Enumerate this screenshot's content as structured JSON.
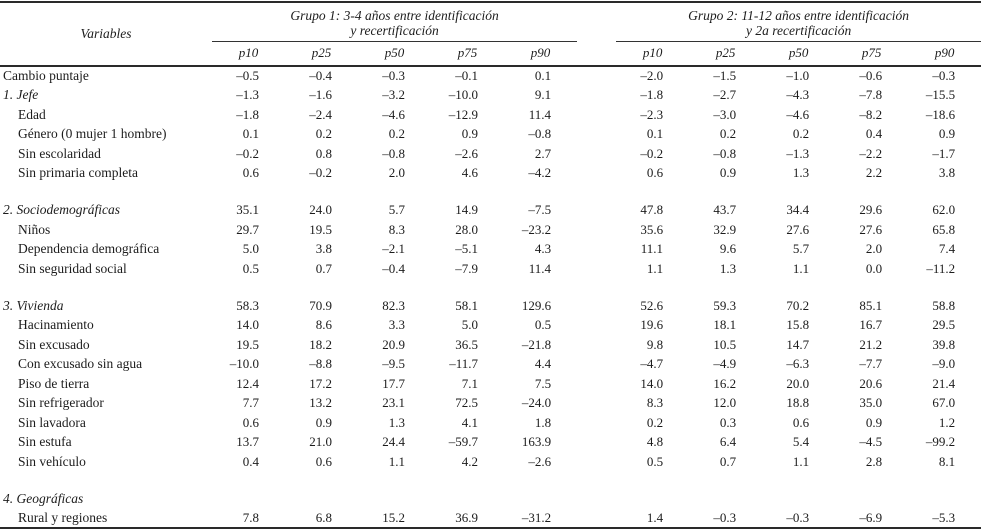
{
  "table": {
    "variables_header": "Variables",
    "groups": [
      {
        "title_line1": "Grupo 1: 3-4 años entre identificación",
        "title_line2": "y recertificación",
        "columns": [
          "p10",
          "p25",
          "p50",
          "p75",
          "p90"
        ]
      },
      {
        "title_line1": "Grupo 2: 11-12 años entre identificación",
        "title_line2": "y 2a recertificación",
        "columns": [
          "p10",
          "p25",
          "p50",
          "p75",
          "p90"
        ]
      }
    ],
    "rows": [
      {
        "label": "Cambio puntaje",
        "italic": false,
        "indent": false,
        "gap_before": false,
        "g1": [
          "–0.5",
          "–0.4",
          "–0.3",
          "–0.1",
          "0.1"
        ],
        "g2": [
          "–2.0",
          "–1.5",
          "–1.0",
          "–0.6",
          "–0.3"
        ]
      },
      {
        "label": "1. Jefe",
        "italic": true,
        "indent": false,
        "gap_before": false,
        "g1": [
          "–1.3",
          "–1.6",
          "–3.2",
          "–10.0",
          "9.1"
        ],
        "g2": [
          "–1.8",
          "–2.7",
          "–4.3",
          "–7.8",
          "–15.5"
        ]
      },
      {
        "label": "Edad",
        "italic": false,
        "indent": true,
        "gap_before": false,
        "g1": [
          "–1.8",
          "–2.4",
          "–4.6",
          "–12.9",
          "11.4"
        ],
        "g2": [
          "–2.3",
          "–3.0",
          "–4.6",
          "–8.2",
          "–18.6"
        ]
      },
      {
        "label": "Género (0 mujer 1 hombre)",
        "italic": false,
        "indent": true,
        "gap_before": false,
        "g1": [
          "0.1",
          "0.2",
          "0.2",
          "0.9",
          "–0.8"
        ],
        "g2": [
          "0.1",
          "0.2",
          "0.2",
          "0.4",
          "0.9"
        ]
      },
      {
        "label": "Sin escolaridad",
        "italic": false,
        "indent": true,
        "gap_before": false,
        "g1": [
          "–0.2",
          "0.8",
          "–0.8",
          "–2.6",
          "2.7"
        ],
        "g2": [
          "–0.2",
          "–0.8",
          "–1.3",
          "–2.2",
          "–1.7"
        ]
      },
      {
        "label": "Sin primaria completa",
        "italic": false,
        "indent": true,
        "gap_before": false,
        "g1": [
          "0.6",
          "–0.2",
          "2.0",
          "4.6",
          "–4.2"
        ],
        "g2": [
          "0.6",
          "0.9",
          "1.3",
          "2.2",
          "3.8"
        ]
      },
      {
        "label": "2. Sociodemográficas",
        "italic": true,
        "indent": false,
        "gap_before": true,
        "g1": [
          "35.1",
          "24.0",
          "5.7",
          "14.9",
          "–7.5"
        ],
        "g2": [
          "47.8",
          "43.7",
          "34.4",
          "29.6",
          "62.0"
        ]
      },
      {
        "label": "Niños",
        "italic": false,
        "indent": true,
        "gap_before": false,
        "g1": [
          "29.7",
          "19.5",
          "8.3",
          "28.0",
          "–23.2"
        ],
        "g2": [
          "35.6",
          "32.9",
          "27.6",
          "27.6",
          "65.8"
        ]
      },
      {
        "label": "Dependencia demográfica",
        "italic": false,
        "indent": true,
        "gap_before": false,
        "g1": [
          "5.0",
          "3.8",
          "–2.1",
          "–5.1",
          "4.3"
        ],
        "g2": [
          "11.1",
          "9.6",
          "5.7",
          "2.0",
          "7.4"
        ]
      },
      {
        "label": "Sin seguridad social",
        "italic": false,
        "indent": true,
        "gap_before": false,
        "g1": [
          "0.5",
          "0.7",
          "–0.4",
          "–7.9",
          "11.4"
        ],
        "g2": [
          "1.1",
          "1.3",
          "1.1",
          "0.0",
          "–11.2"
        ]
      },
      {
        "label": "3. Vivienda",
        "italic": true,
        "indent": false,
        "gap_before": true,
        "g1": [
          "58.3",
          "70.9",
          "82.3",
          "58.1",
          "129.6"
        ],
        "g2": [
          "52.6",
          "59.3",
          "70.2",
          "85.1",
          "58.8"
        ]
      },
      {
        "label": "Hacinamiento",
        "italic": false,
        "indent": true,
        "gap_before": false,
        "g1": [
          "14.0",
          "8.6",
          "3.3",
          "5.0",
          "0.5"
        ],
        "g2": [
          "19.6",
          "18.1",
          "15.8",
          "16.7",
          "29.5"
        ]
      },
      {
        "label": "Sin excusado",
        "italic": false,
        "indent": true,
        "gap_before": false,
        "g1": [
          "19.5",
          "18.2",
          "20.9",
          "36.5",
          "–21.8"
        ],
        "g2": [
          "9.8",
          "10.5",
          "14.7",
          "21.2",
          "39.8"
        ]
      },
      {
        "label": "Con excusado sin agua",
        "italic": false,
        "indent": true,
        "gap_before": false,
        "g1": [
          "–10.0",
          "–8.8",
          "–9.5",
          "–11.7",
          "4.4"
        ],
        "g2": [
          "–4.7",
          "–4.9",
          "–6.3",
          "–7.7",
          "–9.0"
        ]
      },
      {
        "label": "Piso de tierra",
        "italic": false,
        "indent": true,
        "gap_before": false,
        "g1": [
          "12.4",
          "17.2",
          "17.7",
          "7.1",
          "7.5"
        ],
        "g2": [
          "14.0",
          "16.2",
          "20.0",
          "20.6",
          "21.4"
        ]
      },
      {
        "label": "Sin refrigerador",
        "italic": false,
        "indent": true,
        "gap_before": false,
        "g1": [
          "7.7",
          "13.2",
          "23.1",
          "72.5",
          "–24.0"
        ],
        "g2": [
          "8.3",
          "12.0",
          "18.8",
          "35.0",
          "67.0"
        ]
      },
      {
        "label": "Sin lavadora",
        "italic": false,
        "indent": true,
        "gap_before": false,
        "g1": [
          "0.6",
          "0.9",
          "1.3",
          "4.1",
          "1.8"
        ],
        "g2": [
          "0.2",
          "0.3",
          "0.6",
          "0.9",
          "1.2"
        ]
      },
      {
        "label": "Sin estufa",
        "italic": false,
        "indent": true,
        "gap_before": false,
        "g1": [
          "13.7",
          "21.0",
          "24.4",
          "–59.7",
          "163.9"
        ],
        "g2": [
          "4.8",
          "6.4",
          "5.4",
          "–4.5",
          "–99.2"
        ]
      },
      {
        "label": "Sin vehículo",
        "italic": false,
        "indent": true,
        "gap_before": false,
        "g1": [
          "0.4",
          "0.6",
          "1.1",
          "4.2",
          "–2.6"
        ],
        "g2": [
          "0.5",
          "0.7",
          "1.1",
          "2.8",
          "8.1"
        ]
      },
      {
        "label": "4. Geográficas",
        "italic": true,
        "indent": false,
        "gap_before": true,
        "g1": [],
        "g2": []
      },
      {
        "label": "Rural y regiones",
        "italic": false,
        "indent": true,
        "gap_before": false,
        "g1": [
          "7.8",
          "6.8",
          "15.2",
          "36.9",
          "–31.2"
        ],
        "g2": [
          "1.4",
          "–0.3",
          "–0.3",
          "–6.9",
          "–5.3"
        ]
      }
    ]
  }
}
